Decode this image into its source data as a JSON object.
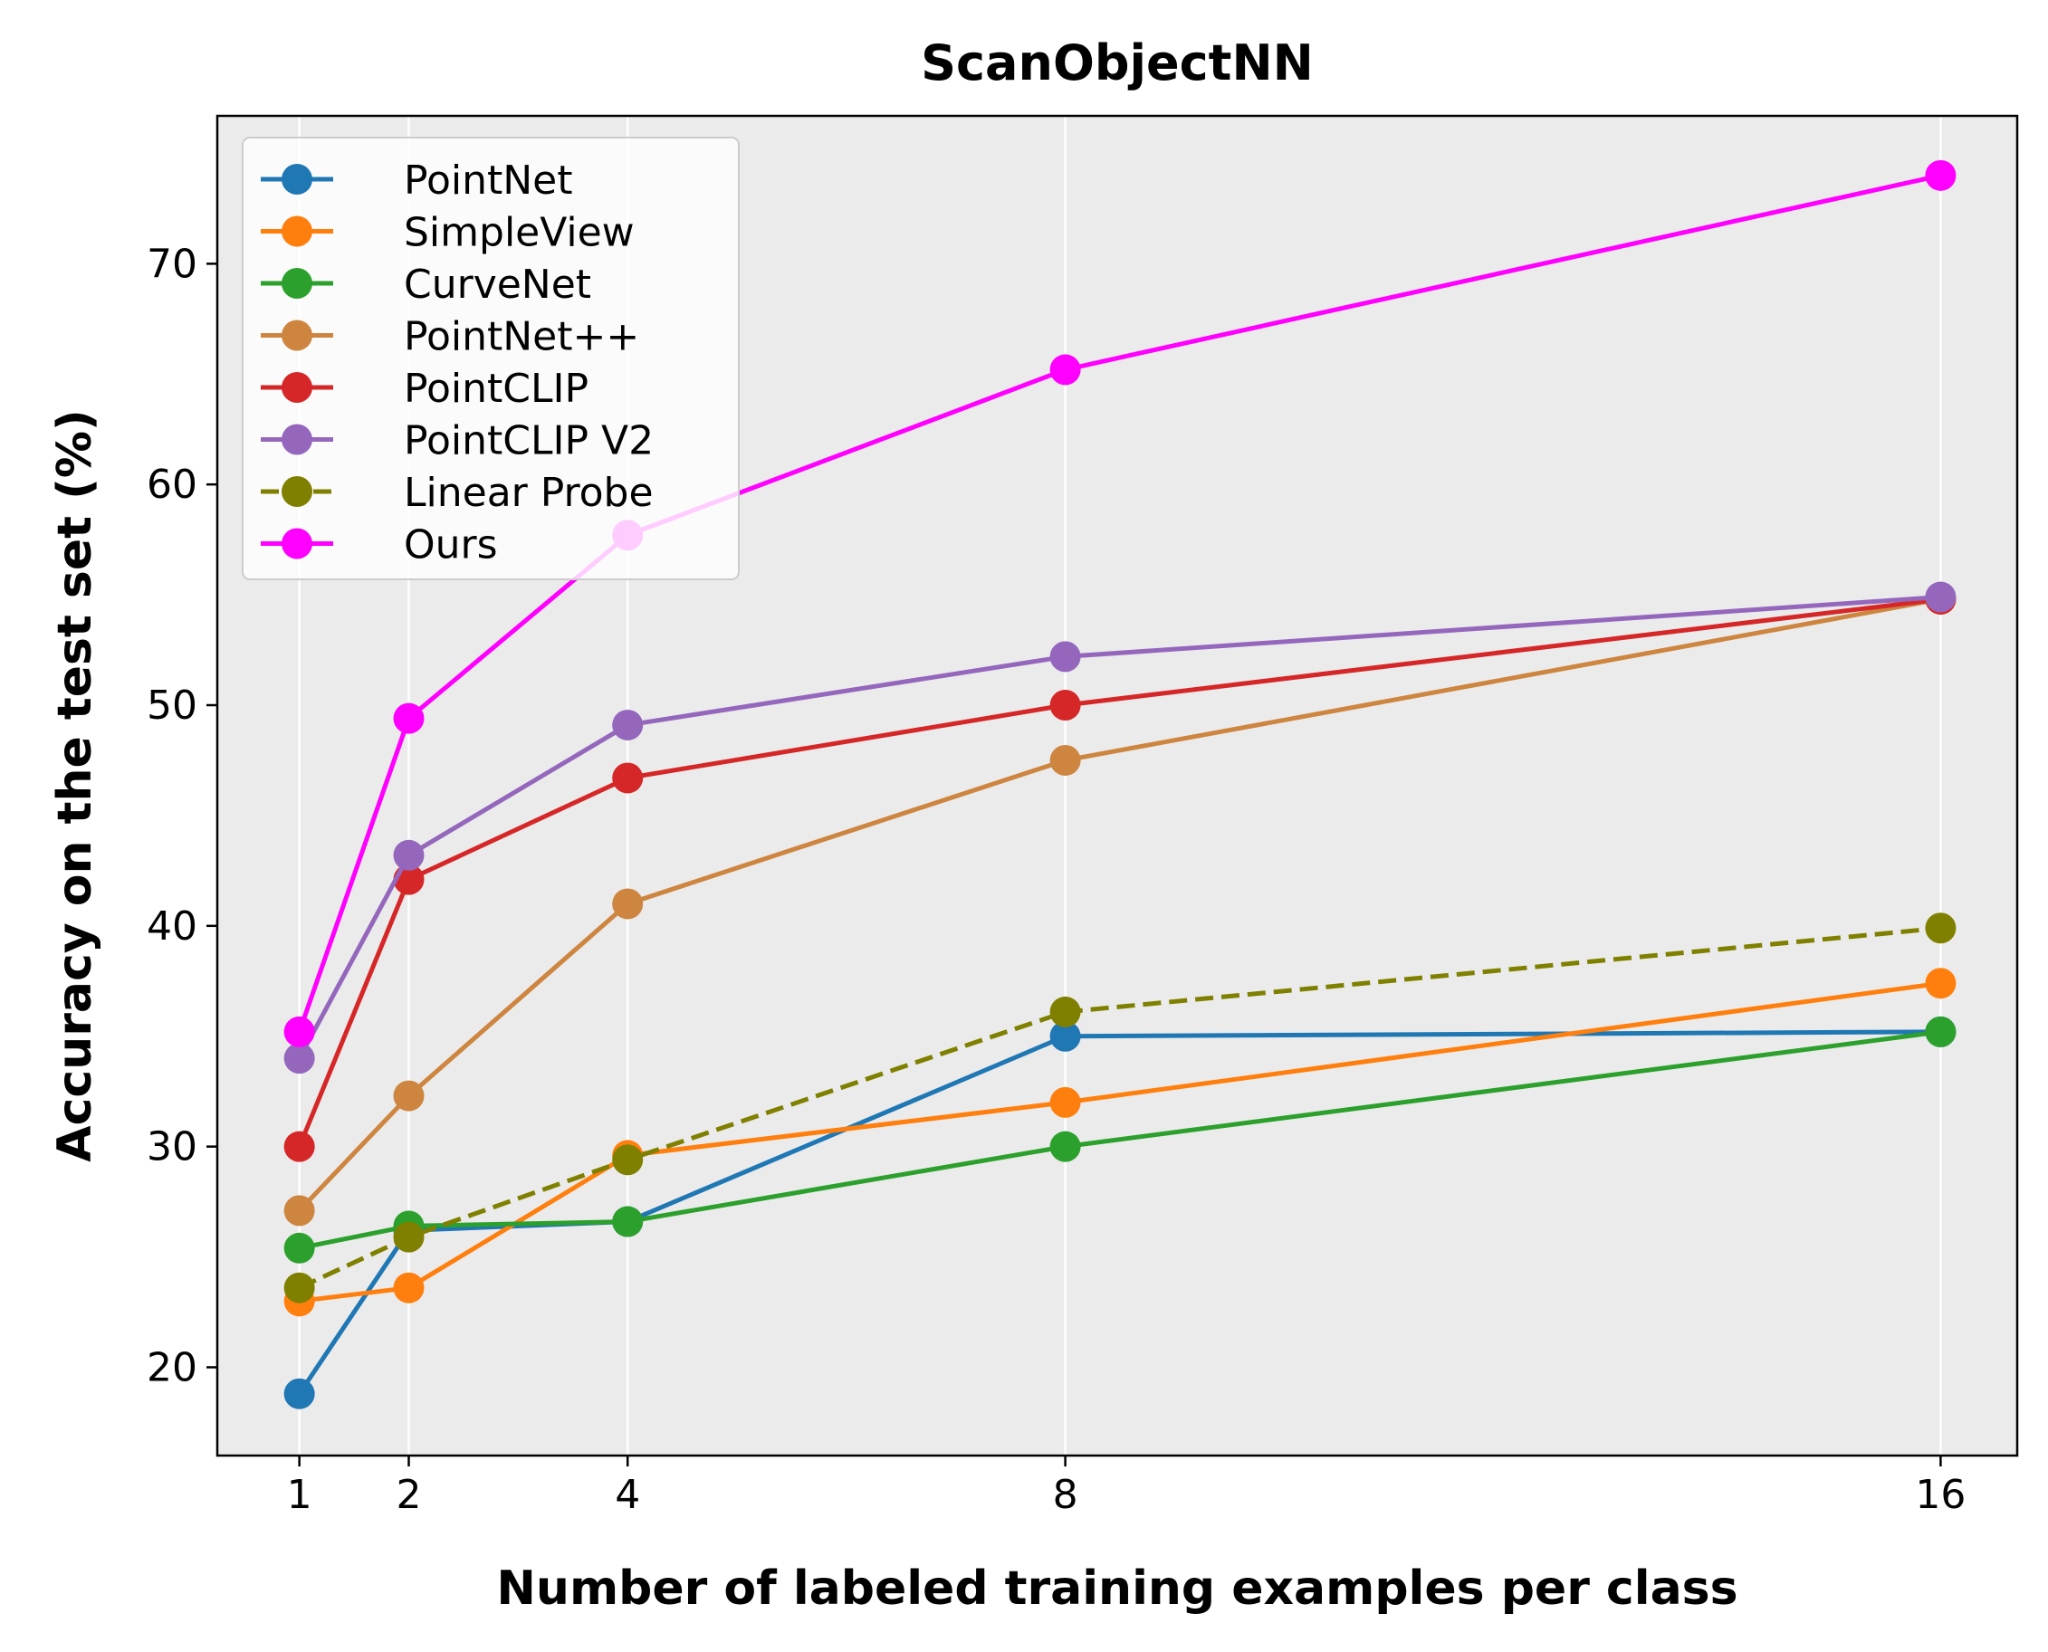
{
  "chart_data": {
    "type": "line",
    "title": "ScanObjectNN",
    "xlabel": "Number of labeled training examples per class",
    "ylabel": "Accuracy on the test set (%)",
    "x": [
      1,
      2,
      4,
      8,
      16
    ],
    "xticks": [
      "1",
      "2",
      "4",
      "8",
      "16"
    ],
    "yticks": [
      20,
      30,
      40,
      50,
      60,
      70
    ],
    "xlim": [
      0.25,
      16.7
    ],
    "ylim": [
      16,
      76.7
    ],
    "grid": "vertical",
    "legend_position": "upper-left",
    "background_color": "#ebebeb",
    "series": [
      {
        "name": "PointNet",
        "color": "#1f77b4",
        "dashed": false,
        "values": [
          18.8,
          26.2,
          26.6,
          35.0,
          35.2
        ]
      },
      {
        "name": "SimpleView",
        "color": "#ff7f0e",
        "dashed": false,
        "values": [
          23.0,
          23.6,
          29.6,
          32.0,
          37.4
        ]
      },
      {
        "name": "CurveNet",
        "color": "#2ca02c",
        "dashed": false,
        "values": [
          25.4,
          26.4,
          26.6,
          30.0,
          35.2
        ]
      },
      {
        "name": "PointNet++",
        "color": "#cd853f",
        "dashed": false,
        "values": [
          27.1,
          32.3,
          41.0,
          47.5,
          54.8
        ]
      },
      {
        "name": "PointCLIP",
        "color": "#d62728",
        "dashed": false,
        "values": [
          30.0,
          42.1,
          46.7,
          50.0,
          54.8
        ]
      },
      {
        "name": "PointCLIP V2",
        "color": "#9467bd",
        "dashed": false,
        "values": [
          34.0,
          43.2,
          49.1,
          52.2,
          54.9
        ]
      },
      {
        "name": "Linear Probe",
        "color": "#808000",
        "dashed": true,
        "values": [
          23.6,
          25.9,
          29.4,
          36.1,
          39.9
        ]
      },
      {
        "name": "Ours",
        "color": "#ff00ff",
        "dashed": false,
        "values": [
          35.2,
          49.4,
          57.7,
          65.2,
          74.0
        ]
      }
    ]
  }
}
